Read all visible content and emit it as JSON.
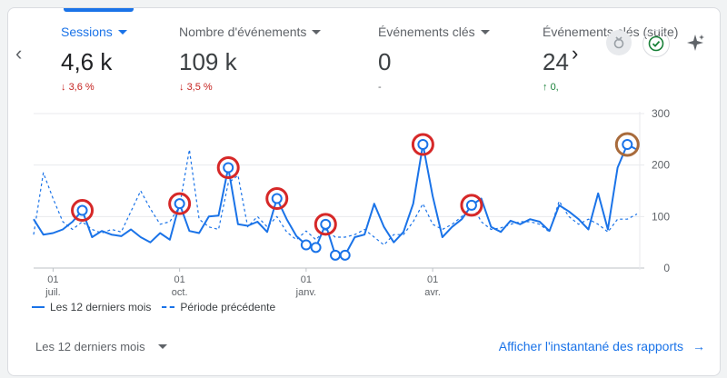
{
  "metrics": [
    {
      "label": "Sessions",
      "value": "4,6 k",
      "delta": "3,6 %",
      "delta_dir": "down"
    },
    {
      "label": "Nombre d'événements",
      "value": "109 k",
      "delta": "3,5 %",
      "delta_dir": "down"
    },
    {
      "label": "Événements clés",
      "value": "0",
      "delta": "-",
      "delta_dir": "none"
    },
    {
      "label": "Événements clés (suite)",
      "value": "24",
      "delta": "0,",
      "delta_dir": "up"
    }
  ],
  "chart_data": {
    "type": "line",
    "y_ticks": [
      "300",
      "200",
      "100",
      "0"
    ],
    "ylim": [
      0,
      300
    ],
    "x_ticks": [
      {
        "day": "01",
        "month": "juil."
      },
      {
        "day": "01",
        "month": "oct."
      },
      {
        "day": "01",
        "month": "janv."
      },
      {
        "day": "01",
        "month": "avr."
      }
    ],
    "series": [
      {
        "name": "Les 12 derniers mois",
        "style": "solid",
        "values": [
          95,
          65,
          68,
          75,
          90,
          112,
          60,
          72,
          65,
          62,
          75,
          60,
          50,
          68,
          55,
          125,
          72,
          68,
          100,
          102,
          195,
          85,
          82,
          90,
          70,
          135,
          95,
          62,
          45,
          40,
          85,
          25,
          25,
          60,
          65,
          125,
          80,
          50,
          70,
          125,
          240,
          140,
          60,
          80,
          95,
          122,
          135,
          80,
          70,
          92,
          85,
          95,
          90,
          72,
          122,
          110,
          95,
          75,
          145,
          75,
          195,
          240,
          230
        ]
      },
      {
        "name": "Période précédente",
        "style": "dashed",
        "values": [
          65,
          185,
          135,
          90,
          75,
          90,
          75,
          68,
          75,
          70,
          110,
          150,
          115,
          85,
          90,
          120,
          230,
          95,
          80,
          75,
          165,
          180,
          80,
          100,
          80,
          100,
          70,
          55,
          72,
          55,
          75,
          60,
          60,
          65,
          75,
          60,
          45,
          65,
          65,
          90,
          125,
          85,
          75,
          85,
          100,
          125,
          90,
          75,
          78,
          85,
          90,
          90,
          85,
          70,
          130,
          100,
          85,
          95,
          85,
          70,
          95,
          95,
          105
        ]
      }
    ],
    "highlighted_points": [
      5,
      15,
      20,
      25,
      30,
      40,
      45,
      61
    ],
    "annotations": "red circles around anomaly points; last point circled in brown"
  },
  "legend": {
    "current": "Les 12 derniers mois",
    "previous": "Période précédente"
  },
  "footer": {
    "period_label": "Les 12 derniers mois",
    "report_link": "Afficher l'instantané des rapports"
  },
  "colors": {
    "accent": "#1a73e8",
    "down": "#c5221f",
    "up": "#188038",
    "annotation_red": "#d62828",
    "annotation_brown": "#a86b3c"
  }
}
